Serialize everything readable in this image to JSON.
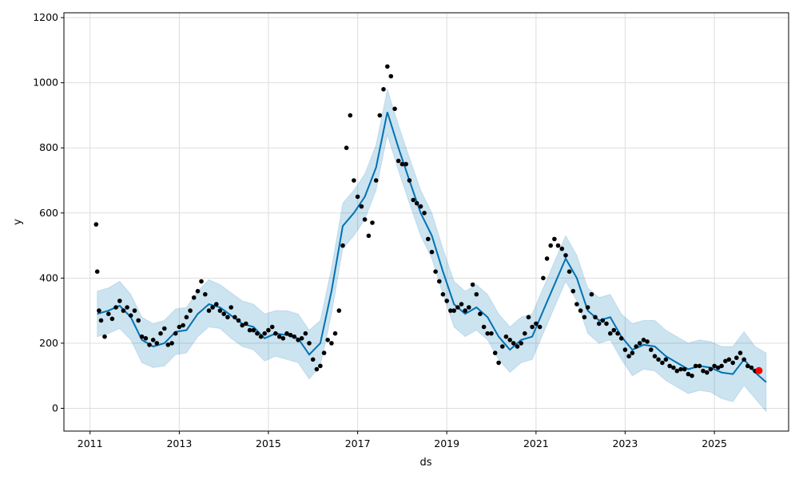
{
  "chart_data": {
    "type": "line",
    "title": "",
    "xlabel": "ds",
    "ylabel": "y",
    "x_range": [
      "2010-06-01",
      "2026-09-01"
    ],
    "ylim": [
      -70,
      1215
    ],
    "x_ticks": [
      "2011",
      "2013",
      "2015",
      "2017",
      "2019",
      "2021",
      "2023",
      "2025"
    ],
    "y_ticks": [
      0,
      200,
      400,
      600,
      800,
      1000,
      1200
    ],
    "grid": true,
    "legend": "none",
    "colors": {
      "observed": "#000000",
      "forecast": "#0072B2",
      "uncertainty": "#0072B2",
      "highlight": "#FF0000",
      "grid": "#DDDDDD"
    },
    "forecast_series": {
      "x": [
        "2011-03-01",
        "2011-06-01",
        "2011-09-01",
        "2011-12-01",
        "2012-03-01",
        "2012-06-01",
        "2012-09-01",
        "2012-12-01",
        "2013-03-01",
        "2013-06-01",
        "2013-09-01",
        "2013-12-01",
        "2014-03-01",
        "2014-06-01",
        "2014-09-01",
        "2014-12-01",
        "2015-03-01",
        "2015-06-01",
        "2015-09-01",
        "2015-12-01",
        "2016-03-01",
        "2016-06-01",
        "2016-09-01",
        "2016-12-01",
        "2017-03-01",
        "2017-06-01",
        "2017-09-01",
        "2017-12-01",
        "2018-03-01",
        "2018-06-01",
        "2018-09-01",
        "2018-12-01",
        "2019-03-01",
        "2019-06-01",
        "2019-09-01",
        "2019-12-01",
        "2020-03-01",
        "2020-06-01",
        "2020-09-01",
        "2020-12-01",
        "2021-03-01",
        "2021-06-01",
        "2021-09-01",
        "2021-12-01",
        "2022-03-01",
        "2022-06-01",
        "2022-09-01",
        "2022-12-01",
        "2023-03-01",
        "2023-06-01",
        "2023-09-01",
        "2023-12-01",
        "2024-03-01",
        "2024-06-01",
        "2024-09-01",
        "2024-12-01",
        "2025-03-01",
        "2025-06-01",
        "2025-09-01",
        "2025-12-01",
        "2026-03-01"
      ],
      "yhat": [
        290,
        300,
        315,
        280,
        210,
        190,
        200,
        235,
        240,
        290,
        320,
        310,
        285,
        260,
        250,
        215,
        230,
        225,
        215,
        165,
        200,
        360,
        560,
        600,
        650,
        740,
        910,
        800,
        700,
        600,
        530,
        420,
        320,
        290,
        310,
        280,
        220,
        180,
        210,
        220,
        300,
        380,
        460,
        400,
        300,
        270,
        280,
        220,
        180,
        195,
        190,
        160,
        140,
        120,
        130,
        125,
        110,
        105,
        150,
        110,
        80
      ],
      "yhat_lower": [
        220,
        230,
        245,
        210,
        140,
        125,
        130,
        165,
        170,
        220,
        250,
        245,
        215,
        190,
        180,
        145,
        160,
        150,
        140,
        90,
        130,
        290,
        490,
        530,
        580,
        670,
        840,
        730,
        630,
        530,
        460,
        350,
        250,
        220,
        240,
        210,
        150,
        110,
        140,
        150,
        230,
        310,
        390,
        330,
        230,
        200,
        210,
        150,
        100,
        120,
        115,
        85,
        65,
        45,
        55,
        50,
        30,
        20,
        70,
        30,
        -10
      ],
      "yhat_upper": [
        360,
        370,
        390,
        350,
        280,
        260,
        270,
        305,
        310,
        360,
        395,
        380,
        355,
        330,
        320,
        290,
        300,
        300,
        290,
        240,
        270,
        430,
        630,
        670,
        720,
        810,
        980,
        870,
        770,
        670,
        600,
        490,
        390,
        360,
        380,
        350,
        290,
        250,
        280,
        290,
        370,
        450,
        530,
        470,
        370,
        340,
        350,
        290,
        260,
        270,
        270,
        240,
        220,
        200,
        210,
        205,
        190,
        190,
        235,
        190,
        170
      ]
    },
    "observed_series": {
      "x": [
        "2011-02-20",
        "2011-03-01",
        "2011-03-15",
        "2011-04-01",
        "2011-05-01",
        "2011-06-01",
        "2011-07-01",
        "2011-08-01",
        "2011-09-01",
        "2011-10-01",
        "2011-11-01",
        "2011-12-01",
        "2012-01-01",
        "2012-02-01",
        "2012-03-01",
        "2012-04-01",
        "2012-05-01",
        "2012-06-01",
        "2012-07-01",
        "2012-08-01",
        "2012-09-01",
        "2012-10-01",
        "2012-11-01",
        "2012-12-01",
        "2013-01-01",
        "2013-02-01",
        "2013-03-01",
        "2013-04-01",
        "2013-05-01",
        "2013-06-01",
        "2013-07-01",
        "2013-08-01",
        "2013-09-01",
        "2013-10-01",
        "2013-11-01",
        "2013-12-01",
        "2014-01-01",
        "2014-02-01",
        "2014-03-01",
        "2014-04-01",
        "2014-05-01",
        "2014-06-01",
        "2014-07-01",
        "2014-08-01",
        "2014-09-01",
        "2014-10-01",
        "2014-11-01",
        "2014-12-01",
        "2015-01-01",
        "2015-02-01",
        "2015-03-01",
        "2015-04-01",
        "2015-05-01",
        "2015-06-01",
        "2015-07-01",
        "2015-08-01",
        "2015-09-01",
        "2015-10-01",
        "2015-11-01",
        "2015-12-01",
        "2016-01-01",
        "2016-02-01",
        "2016-03-01",
        "2016-04-01",
        "2016-05-01",
        "2016-06-01",
        "2016-07-01",
        "2016-08-01",
        "2016-09-01",
        "2016-10-01",
        "2016-11-01",
        "2016-12-01",
        "2017-01-01",
        "2017-02-01",
        "2017-03-01",
        "2017-04-01",
        "2017-05-01",
        "2017-06-01",
        "2017-07-01",
        "2017-08-01",
        "2017-09-01",
        "2017-10-01",
        "2017-11-01",
        "2017-12-01",
        "2018-01-01",
        "2018-02-01",
        "2018-03-01",
        "2018-04-01",
        "2018-05-01",
        "2018-06-01",
        "2018-07-01",
        "2018-08-01",
        "2018-09-01",
        "2018-10-01",
        "2018-11-01",
        "2018-12-01",
        "2019-01-01",
        "2019-02-01",
        "2019-03-01",
        "2019-04-01",
        "2019-05-01",
        "2019-06-01",
        "2019-07-01",
        "2019-08-01",
        "2019-09-01",
        "2019-10-01",
        "2019-11-01",
        "2019-12-01",
        "2020-01-01",
        "2020-02-01",
        "2020-03-01",
        "2020-04-01",
        "2020-05-01",
        "2020-06-01",
        "2020-07-01",
        "2020-08-01",
        "2020-09-01",
        "2020-10-01",
        "2020-11-01",
        "2020-12-01",
        "2021-01-01",
        "2021-02-01",
        "2021-03-01",
        "2021-04-01",
        "2021-05-01",
        "2021-06-01",
        "2021-07-01",
        "2021-08-01",
        "2021-09-01",
        "2021-10-01",
        "2021-11-01",
        "2021-12-01",
        "2022-01-01",
        "2022-02-01",
        "2022-03-01",
        "2022-04-01",
        "2022-05-01",
        "2022-06-01",
        "2022-07-01",
        "2022-08-01",
        "2022-09-01",
        "2022-10-01",
        "2022-11-01",
        "2022-12-01",
        "2023-01-01",
        "2023-02-01",
        "2023-03-01",
        "2023-04-01",
        "2023-05-01",
        "2023-06-01",
        "2023-07-01",
        "2023-08-01",
        "2023-09-01",
        "2023-10-01",
        "2023-11-01",
        "2023-12-01",
        "2024-01-01",
        "2024-02-01",
        "2024-03-01",
        "2024-04-01",
        "2024-05-01",
        "2024-06-01",
        "2024-07-01",
        "2024-08-01",
        "2024-09-01",
        "2024-10-01",
        "2024-11-01",
        "2024-12-01",
        "2025-01-01",
        "2025-02-01",
        "2025-03-01",
        "2025-04-01",
        "2025-05-01",
        "2025-06-01",
        "2025-07-01",
        "2025-08-01",
        "2025-09-01",
        "2025-10-01",
        "2025-11-01",
        "2025-12-01"
      ],
      "y": [
        565,
        420,
        300,
        270,
        220,
        290,
        275,
        310,
        330,
        300,
        310,
        285,
        300,
        270,
        220,
        215,
        195,
        210,
        200,
        230,
        245,
        195,
        200,
        230,
        250,
        255,
        280,
        300,
        340,
        360,
        390,
        350,
        300,
        310,
        320,
        300,
        290,
        280,
        310,
        280,
        270,
        255,
        260,
        240,
        240,
        230,
        220,
        230,
        240,
        250,
        230,
        220,
        215,
        230,
        225,
        220,
        210,
        215,
        230,
        200,
        150,
        120,
        130,
        170,
        210,
        200,
        230,
        300,
        500,
        800,
        900,
        700,
        650,
        620,
        580,
        530,
        570,
        700,
        900,
        980,
        1050,
        1020,
        920,
        760,
        750,
        750,
        700,
        640,
        630,
        620,
        600,
        520,
        480,
        420,
        390,
        350,
        330,
        300,
        300,
        310,
        320,
        300,
        310,
        380,
        350,
        290,
        250,
        230,
        230,
        170,
        140,
        190,
        220,
        210,
        200,
        190,
        200,
        230,
        280,
        250,
        260,
        250,
        400,
        460,
        500,
        520,
        500,
        490,
        470,
        420,
        360,
        320,
        300,
        280,
        310,
        350,
        280,
        260,
        270,
        260,
        230,
        240,
        230,
        215,
        180,
        160,
        170,
        190,
        200,
        210,
        205,
        180,
        160,
        150,
        140,
        150,
        130,
        125,
        115,
        120,
        120,
        105,
        100,
        130,
        130,
        115,
        110,
        120,
        130,
        125,
        130,
        145,
        150,
        140,
        155,
        170,
        150,
        130,
        125,
        115
      ],
      "highlight": {
        "x": "2026-01-01",
        "y": 116
      }
    }
  }
}
